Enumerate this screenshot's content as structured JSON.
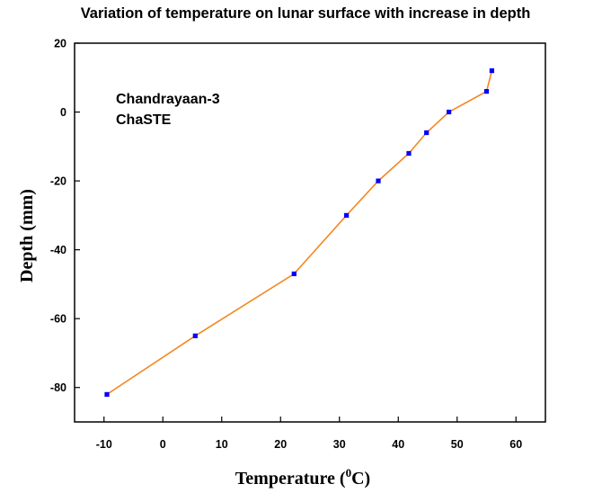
{
  "chart_data": {
    "type": "line",
    "title": "Variation of temperature on lunar surface with increase in depth",
    "xlabel": "Temperature",
    "xlabel_unit_sup": "0",
    "xlabel_unit": "C",
    "ylabel": "Depth (mm)",
    "xlim": [
      -15,
      65
    ],
    "ylim": [
      -90,
      20
    ],
    "xticks": [
      -10,
      0,
      10,
      20,
      30,
      40,
      50,
      60
    ],
    "yticks": [
      20,
      0,
      -20,
      -40,
      -60,
      -80
    ],
    "grid": false,
    "annotations": [
      "Chandrayaan-3",
      "ChaSTE"
    ],
    "series": [
      {
        "line_color": "#f5861f",
        "marker_color": "#0000ff",
        "x": [
          -9.5,
          5.5,
          22.3,
          31.2,
          36.6,
          41.8,
          44.8,
          48.6,
          55.0,
          55.9
        ],
        "y": [
          -82,
          -65,
          -47,
          -30,
          -20,
          -12,
          -6,
          0,
          6,
          12
        ]
      }
    ]
  }
}
